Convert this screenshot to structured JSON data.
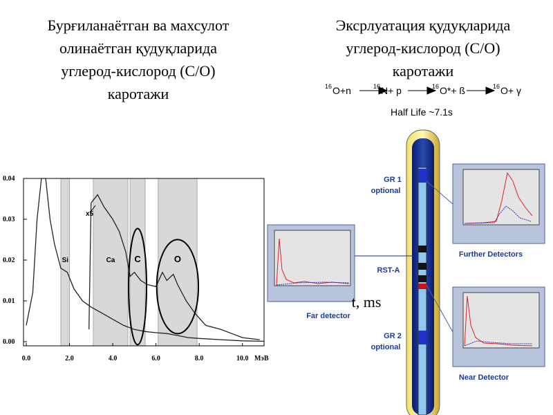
{
  "left_title": [
    "Бурғиланаётган ва махсулот",
    "олинаётган қудуқларида",
    "углерод-кислород (С/О)",
    "каротажи"
  ],
  "right_title": [
    "Эксрлуатация қудуқларида",
    "углерод-кислород (С/О)",
    "каротажи"
  ],
  "reaction": [
    {
      "mass": "16",
      "text": "O+n"
    },
    {
      "mass": "16",
      "text": "N+ p"
    },
    {
      "mass": "16",
      "text": "O*+ ß"
    },
    {
      "mass": "16",
      "text": "O+ γ"
    }
  ],
  "half_life": "Half Life ~7.1s",
  "tool_labels": [
    "GR 1",
    "optional",
    "RST-A",
    "GR 2",
    "optional"
  ],
  "detectors": {
    "far": "Far detector",
    "further": "Further Detectors",
    "near": "Near Detector"
  },
  "time_label": "t, ms",
  "chart_data": {
    "type": "line",
    "x_unit": "МэВ",
    "xlim": [
      0,
      11
    ],
    "ylim": [
      0,
      0.04
    ],
    "xticks": [
      {
        "value": 0,
        "label": "0.0"
      },
      {
        "value": 2,
        "label": "2.0"
      },
      {
        "value": 4,
        "label": "4.0"
      },
      {
        "value": 6,
        "label": "6.0"
      },
      {
        "value": 8,
        "label": "8.0"
      },
      {
        "value": 10,
        "label": "10.0"
      }
    ],
    "yticks": [
      {
        "value": 0,
        "label": "0.00"
      },
      {
        "value": 0.01,
        "label": "0.01"
      },
      {
        "value": 0.02,
        "label": "0.02"
      },
      {
        "value": 0.03,
        "label": "0.03"
      },
      {
        "value": 0.04,
        "label": "0.04"
      }
    ],
    "regions": [
      {
        "label": "Si",
        "x": [
          1.6,
          2.0
        ]
      },
      {
        "label": "Ca",
        "x": [
          3.1,
          4.7
        ]
      },
      {
        "label": "C",
        "x": [
          4.8,
          5.5
        ]
      },
      {
        "label": "O",
        "x": [
          6.1,
          7.9
        ]
      }
    ],
    "scale_note": "x5",
    "series": [
      {
        "color": "#222222",
        "x": [
          0,
          0.3,
          0.5,
          0.7,
          0.9,
          1.1,
          1.3,
          1.6,
          1.9,
          2.2,
          2.6,
          3.0,
          3.5,
          4.0,
          4.5,
          5.0,
          5.5,
          6.0,
          6.5,
          7.0,
          7.5,
          8.0,
          9.0,
          10.0,
          11.0
        ],
        "values": [
          0.004,
          0.012,
          0.03,
          0.04,
          0.04,
          0.03,
          0.024,
          0.018,
          0.017,
          0.013,
          0.01,
          0.0085,
          0.007,
          0.0055,
          0.004,
          0.003,
          0.0025,
          0.0022,
          0.002,
          0.0015,
          0.001,
          0.0008,
          0.0005,
          0.0002,
          0.0001
        ]
      },
      {
        "color": "#222222",
        "x": [
          2.9,
          3.0,
          3.3,
          3.6,
          4.0,
          4.3,
          4.6,
          4.8,
          5.0,
          5.3,
          5.6,
          6.0,
          6.3,
          6.5,
          6.8,
          7.0,
          7.4,
          7.8,
          8.3,
          9.0,
          9.5,
          10.0,
          10.8
        ],
        "values": [
          0.003,
          0.034,
          0.036,
          0.033,
          0.03,
          0.027,
          0.022,
          0.016,
          0.017,
          0.015,
          0.014,
          0.0135,
          0.017,
          0.015,
          0.0165,
          0.014,
          0.01,
          0.007,
          0.004,
          0.003,
          0.002,
          0.001,
          0.0005
        ]
      }
    ]
  }
}
